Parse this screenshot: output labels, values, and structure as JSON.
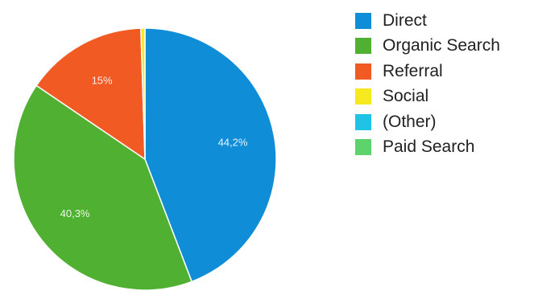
{
  "chart_data": {
    "type": "pie",
    "title": "",
    "legend_position": "right",
    "slices": [
      {
        "label": "Direct",
        "value": 44.2,
        "value_label": "44,2%",
        "color": "#0f8dd6"
      },
      {
        "label": "Organic Search",
        "value": 40.3,
        "value_label": "40,3%",
        "color": "#4fb032"
      },
      {
        "label": "Referral",
        "value": 15.0,
        "value_label": "15%",
        "color": "#f15a22"
      },
      {
        "label": "Social",
        "value": 0.5,
        "value_label": "",
        "color": "#f7e91f"
      },
      {
        "label": "(Other)",
        "value": 0.0,
        "value_label": "",
        "color": "#1fc3e6"
      },
      {
        "label": "Paid Search",
        "value": 0.0,
        "value_label": "",
        "color": "#5ed36b"
      }
    ]
  }
}
